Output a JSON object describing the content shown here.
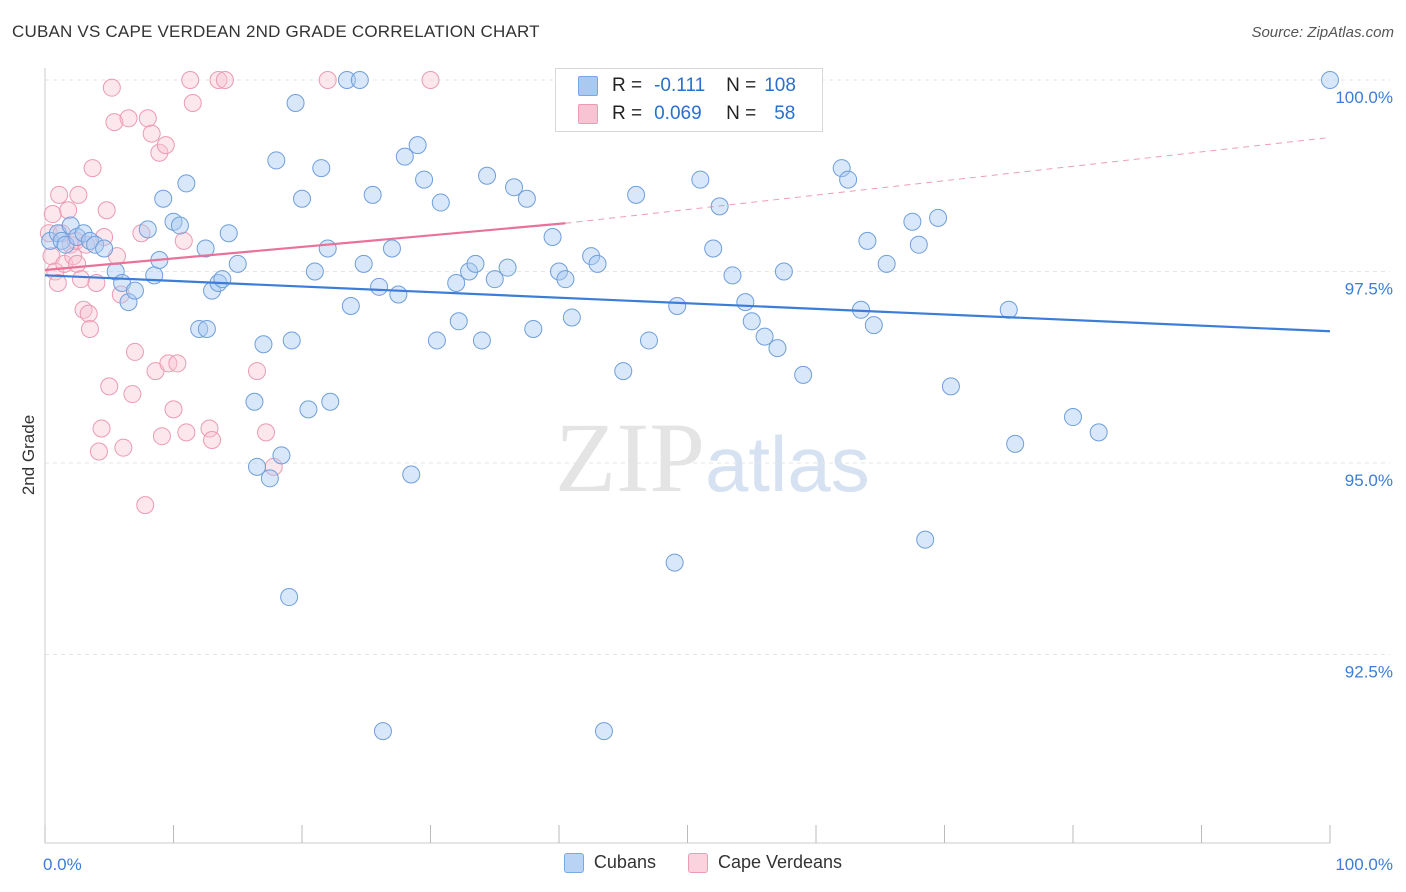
{
  "title": "CUBAN VS CAPE VERDEAN 2ND GRADE CORRELATION CHART",
  "source": "Source: ZipAtlas.com",
  "watermark": {
    "zip": "ZIP",
    "atlas": "atlas"
  },
  "legend": {
    "rows": [
      {
        "r_label": "R =",
        "r_value": "-0.111",
        "n_label": "N =",
        "n_value": "108",
        "color": "#a9c9f1",
        "border": "#7aa8e2"
      },
      {
        "r_label": "R =",
        "r_value": "0.069",
        "n_label": "N =",
        "n_value": "58",
        "color": "#f8c3d3",
        "border": "#ee9ab4"
      }
    ]
  },
  "bottom_legend": [
    {
      "label": "Cubans",
      "color": "#b9d3f4",
      "border": "#7aa8e2"
    },
    {
      "label": "Cape Verdeans",
      "color": "#fbd3df",
      "border": "#ee9ab4"
    }
  ],
  "chart_data": {
    "type": "scatter",
    "title": "CUBAN VS CAPE VERDEAN 2ND GRADE CORRELATION CHART",
    "xlabel": "",
    "ylabel": "2nd Grade",
    "xlim": [
      0,
      100
    ],
    "ylim": [
      90.5,
      100.5
    ],
    "x_tick_labels": [
      "0.0%",
      "100.0%"
    ],
    "y_ticks": [
      100.0,
      97.5,
      95.0,
      92.5
    ],
    "y_tick_labels": [
      "100.0%",
      "97.5%",
      "95.0%",
      "92.5%"
    ],
    "grid": true,
    "legend_placement": "top-center",
    "colors": {
      "cubans": "#3b7dd8",
      "cape_verdeans": "#e8729a",
      "axis_label": "#3b7dd8"
    },
    "series": [
      {
        "name": "Cubans",
        "trend": {
          "x": [
            0,
            100
          ],
          "y": [
            97.45,
            96.72
          ]
        },
        "points": [
          [
            0.4,
            97.9
          ],
          [
            1.0,
            98.0
          ],
          [
            1.3,
            97.9
          ],
          [
            1.6,
            97.85
          ],
          [
            2.0,
            98.1
          ],
          [
            2.5,
            97.95
          ],
          [
            3.0,
            98.0
          ],
          [
            3.5,
            97.9
          ],
          [
            3.9,
            97.85
          ],
          [
            4.6,
            97.8
          ],
          [
            5.5,
            97.5
          ],
          [
            6.0,
            97.35
          ],
          [
            6.5,
            97.1
          ],
          [
            7.0,
            97.25
          ],
          [
            8.0,
            98.05
          ],
          [
            8.5,
            97.45
          ],
          [
            8.9,
            97.65
          ],
          [
            9.2,
            98.45
          ],
          [
            10.0,
            98.15
          ],
          [
            10.5,
            98.1
          ],
          [
            11.0,
            98.65
          ],
          [
            12.0,
            96.75
          ],
          [
            12.5,
            97.8
          ],
          [
            12.6,
            96.75
          ],
          [
            13.0,
            97.25
          ],
          [
            13.5,
            97.35
          ],
          [
            13.8,
            97.4
          ],
          [
            14.3,
            98.0
          ],
          [
            15.0,
            97.6
          ],
          [
            16.3,
            95.8
          ],
          [
            16.5,
            94.95
          ],
          [
            17.0,
            96.55
          ],
          [
            17.5,
            94.8
          ],
          [
            18.0,
            98.95
          ],
          [
            18.4,
            95.1
          ],
          [
            19.0,
            93.25
          ],
          [
            19.2,
            96.6
          ],
          [
            19.5,
            99.7
          ],
          [
            20.0,
            98.45
          ],
          [
            20.5,
            95.7
          ],
          [
            21.0,
            97.5
          ],
          [
            21.5,
            98.85
          ],
          [
            22.0,
            97.8
          ],
          [
            22.2,
            95.8
          ],
          [
            23.5,
            100.0
          ],
          [
            23.8,
            97.05
          ],
          [
            24.5,
            100.0
          ],
          [
            24.8,
            97.6
          ],
          [
            25.5,
            98.5
          ],
          [
            26.0,
            97.3
          ],
          [
            26.3,
            91.5
          ],
          [
            27.0,
            97.8
          ],
          [
            27.5,
            97.2
          ],
          [
            28.0,
            99.0
          ],
          [
            28.5,
            94.85
          ],
          [
            29.0,
            99.15
          ],
          [
            29.5,
            98.7
          ],
          [
            30.5,
            96.6
          ],
          [
            30.8,
            98.4
          ],
          [
            32.0,
            97.35
          ],
          [
            32.2,
            96.85
          ],
          [
            33.0,
            97.5
          ],
          [
            33.5,
            97.6
          ],
          [
            34.0,
            96.6
          ],
          [
            34.4,
            98.75
          ],
          [
            35.0,
            97.4
          ],
          [
            36.0,
            97.55
          ],
          [
            36.5,
            98.6
          ],
          [
            37.5,
            98.45
          ],
          [
            38.0,
            96.75
          ],
          [
            39.5,
            97.95
          ],
          [
            40.0,
            97.5
          ],
          [
            40.5,
            97.4
          ],
          [
            41.0,
            96.9
          ],
          [
            42.5,
            97.7
          ],
          [
            43.0,
            97.6
          ],
          [
            43.5,
            91.5
          ],
          [
            45.0,
            96.2
          ],
          [
            46.0,
            98.5
          ],
          [
            47.0,
            96.6
          ],
          [
            49.0,
            93.7
          ],
          [
            49.2,
            97.05
          ],
          [
            51.0,
            98.7
          ],
          [
            52.0,
            97.8
          ],
          [
            52.5,
            98.35
          ],
          [
            53.5,
            97.45
          ],
          [
            54.5,
            97.1
          ],
          [
            55.0,
            96.85
          ],
          [
            56.0,
            96.65
          ],
          [
            57.0,
            96.5
          ],
          [
            57.5,
            97.5
          ],
          [
            59.0,
            96.15
          ],
          [
            62.0,
            98.85
          ],
          [
            62.5,
            98.7
          ],
          [
            63.5,
            97.0
          ],
          [
            64.0,
            97.9
          ],
          [
            64.5,
            96.8
          ],
          [
            65.5,
            97.6
          ],
          [
            67.5,
            98.15
          ],
          [
            68.0,
            97.85
          ],
          [
            68.5,
            94.0
          ],
          [
            69.5,
            98.2
          ],
          [
            70.5,
            96.0
          ],
          [
            75.0,
            97.0
          ],
          [
            75.5,
            95.25
          ],
          [
            80.0,
            95.6
          ],
          [
            82.0,
            95.4
          ],
          [
            100.0,
            100.0
          ]
        ]
      },
      {
        "name": "Cape Verdeans",
        "trend": {
          "x": [
            0,
            40.5,
            100
          ],
          "y": [
            97.52,
            98.13,
            99.25
          ],
          "solid_until_x": 40.5
        },
        "points": [
          [
            0.3,
            98.0
          ],
          [
            0.5,
            97.7
          ],
          [
            0.6,
            98.25
          ],
          [
            0.8,
            97.5
          ],
          [
            1.0,
            97.35
          ],
          [
            1.1,
            98.5
          ],
          [
            1.3,
            98.0
          ],
          [
            1.5,
            97.6
          ],
          [
            1.8,
            98.3
          ],
          [
            2.0,
            97.85
          ],
          [
            2.2,
            97.7
          ],
          [
            2.4,
            97.9
          ],
          [
            2.5,
            97.6
          ],
          [
            2.6,
            98.5
          ],
          [
            2.8,
            97.4
          ],
          [
            3.0,
            97.0
          ],
          [
            3.2,
            97.85
          ],
          [
            3.4,
            96.95
          ],
          [
            3.5,
            96.75
          ],
          [
            3.7,
            98.85
          ],
          [
            4.0,
            97.35
          ],
          [
            4.2,
            95.15
          ],
          [
            4.4,
            95.45
          ],
          [
            4.6,
            97.95
          ],
          [
            4.8,
            98.3
          ],
          [
            5.0,
            96.0
          ],
          [
            5.2,
            99.9
          ],
          [
            5.4,
            99.45
          ],
          [
            5.6,
            97.7
          ],
          [
            5.9,
            97.2
          ],
          [
            6.1,
            95.2
          ],
          [
            6.5,
            99.5
          ],
          [
            6.8,
            95.9
          ],
          [
            7.0,
            96.45
          ],
          [
            7.5,
            98.0
          ],
          [
            7.8,
            94.45
          ],
          [
            8.0,
            99.5
          ],
          [
            8.3,
            99.3
          ],
          [
            8.6,
            96.2
          ],
          [
            8.9,
            99.05
          ],
          [
            9.1,
            95.35
          ],
          [
            9.4,
            99.15
          ],
          [
            9.6,
            96.3
          ],
          [
            10.0,
            95.7
          ],
          [
            10.3,
            96.3
          ],
          [
            10.8,
            97.9
          ],
          [
            11.0,
            95.4
          ],
          [
            11.3,
            100.0
          ],
          [
            11.5,
            99.7
          ],
          [
            12.8,
            95.45
          ],
          [
            13.0,
            95.3
          ],
          [
            13.5,
            100.0
          ],
          [
            14.0,
            100.0
          ],
          [
            16.5,
            96.2
          ],
          [
            17.2,
            95.4
          ],
          [
            17.8,
            94.95
          ],
          [
            22.0,
            100.0
          ],
          [
            30.0,
            100.0
          ]
        ]
      }
    ]
  }
}
